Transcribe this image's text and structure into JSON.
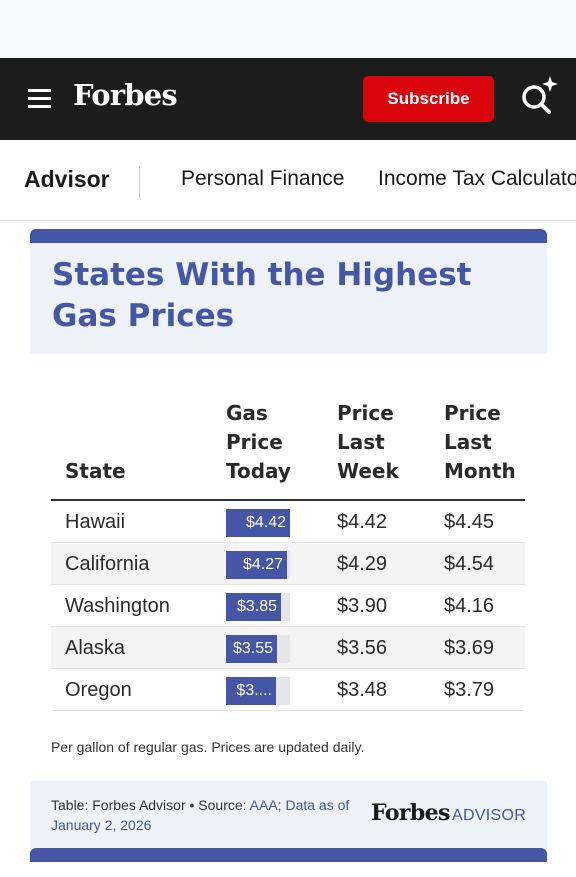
{
  "header": {
    "logo": "Forbes",
    "subscribe_label": "Subscribe",
    "menu_icon": "hamburger-menu-icon",
    "search_icon": "search-sparkle-icon",
    "colors": {
      "masthead": "#1c1c1c",
      "subscribe": "#d8050c"
    }
  },
  "subnav": {
    "brand": "Advisor",
    "links": [
      "Personal Finance",
      "Income Tax Calculator"
    ]
  },
  "card": {
    "title": "States With the Highest Gas Prices",
    "accent_color": "#4456a5",
    "columns": {
      "state": "State",
      "today": "Gas Price Today",
      "last_week": "Price Last Week",
      "last_month": "Price Last Month"
    },
    "rows": [
      {
        "state": "Hawaii",
        "today": "$4.42",
        "today_value": 4.42,
        "last_week": "$4.42",
        "last_month": "$4.45"
      },
      {
        "state": "California",
        "today": "$4.27",
        "today_value": 4.27,
        "last_week": "$4.29",
        "last_month": "$4.54"
      },
      {
        "state": "Washington",
        "today": "$3.85",
        "today_value": 3.85,
        "last_week": "$3.90",
        "last_month": "$4.16"
      },
      {
        "state": "Alaska",
        "today": "$3.55",
        "today_value": 3.55,
        "last_week": "$3.56",
        "last_month": "$3.69"
      },
      {
        "state": "Oregon",
        "today": "$3....",
        "today_value": 3.45,
        "last_week": "$3.48",
        "last_month": "$3.79"
      }
    ],
    "bar_scale_max": 4.42,
    "footnote": "Per gallon of regular gas. Prices are updated daily.",
    "source": {
      "prefix": "Table: Forbes Advisor • Source: ",
      "link": "AAA; Data as of January 2, 2026",
      "logo": "Forbes",
      "logo_suffix": "ADVISOR"
    }
  }
}
